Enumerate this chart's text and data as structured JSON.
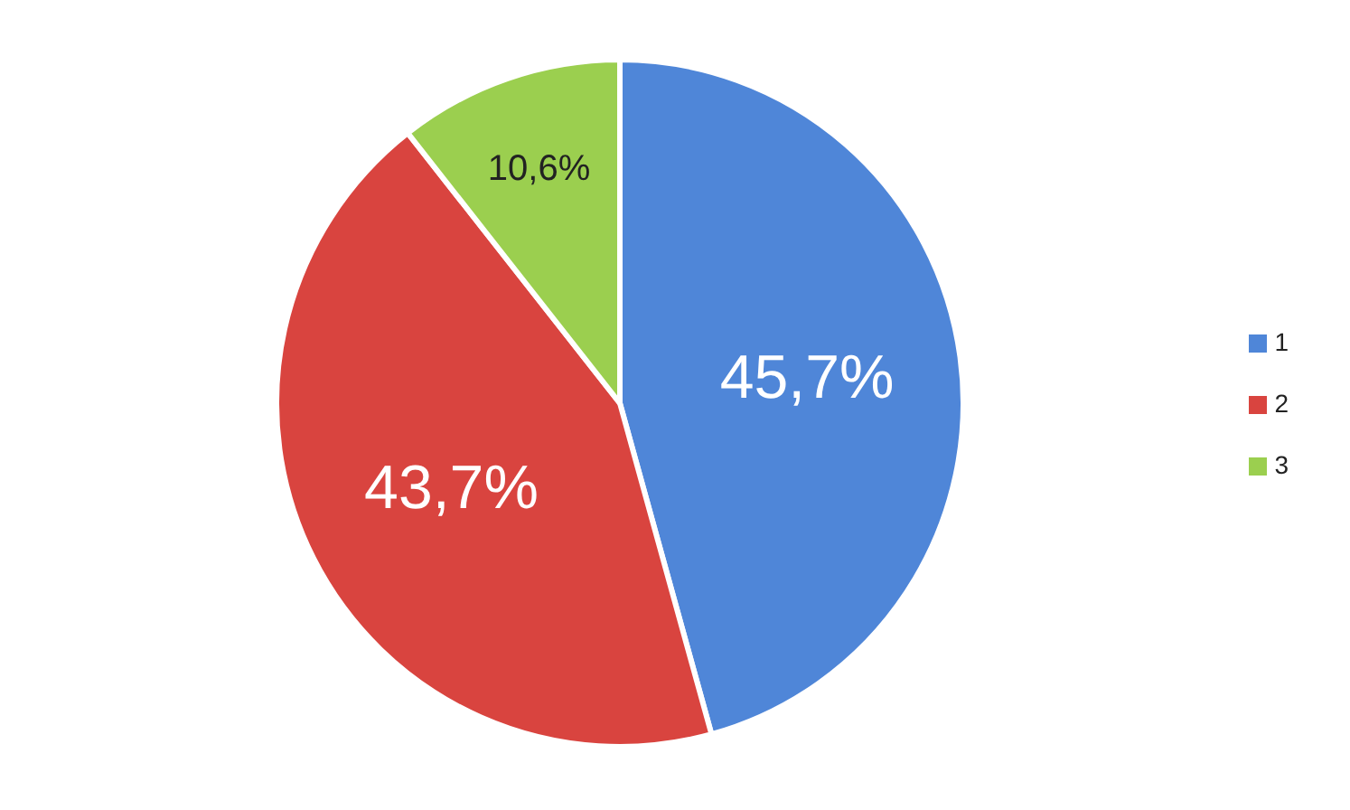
{
  "chart_data": {
    "type": "pie",
    "categories": [
      "1",
      "2",
      "3"
    ],
    "values": [
      45.7,
      43.7,
      10.6
    ],
    "colors": [
      "#4f86d8",
      "#d9443f",
      "#9bcf4f"
    ],
    "value_labels": [
      "45,7%",
      "43,7%",
      "10,6%"
    ],
    "legend": "right"
  }
}
